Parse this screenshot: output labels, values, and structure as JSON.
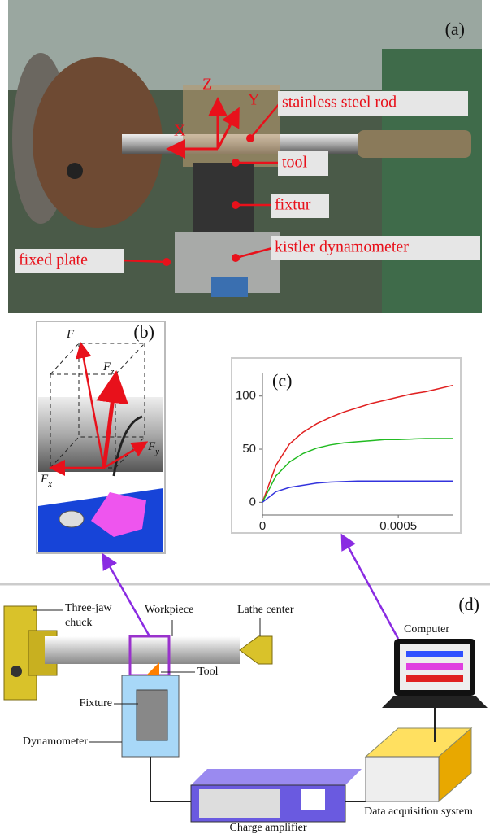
{
  "panel_a": {
    "label": "(a)",
    "axes": [
      "X",
      "Y",
      "Z"
    ],
    "annotations": [
      "stainless steel rod",
      "tool",
      "fixtur",
      "kistler dynamometer",
      "fixed plate"
    ]
  },
  "panel_b": {
    "label": "(b)",
    "forces": [
      {
        "symbol": "F"
      },
      {
        "symbol": "F",
        "subscript": "z"
      },
      {
        "symbol": "F",
        "subscript": "y"
      },
      {
        "symbol": "F",
        "subscript": "x"
      }
    ]
  },
  "panel_c": {
    "type": "line",
    "label": "(c)",
    "x": [
      0,
      5e-05,
      0.0001,
      0.00015,
      0.0002,
      0.00025,
      0.0003,
      0.00035,
      0.0004,
      0.00045,
      0.0005,
      0.00055,
      0.0006,
      0.00065,
      0.0007
    ],
    "series": [
      {
        "color": "#e02020",
        "values": [
          0,
          35,
          55,
          66,
          74,
          80,
          85,
          89,
          93,
          96,
          99,
          102,
          104,
          107,
          110
        ]
      },
      {
        "color": "#22bb22",
        "values": [
          0,
          25,
          38,
          46,
          51,
          54,
          56,
          57,
          58,
          59,
          59,
          59.5,
          60,
          60,
          60
        ]
      },
      {
        "color": "#3333dd",
        "values": [
          0,
          10,
          14,
          16,
          18,
          19,
          19.5,
          20,
          20,
          20,
          20,
          20,
          20,
          20,
          20
        ]
      }
    ],
    "xlim": [
      0,
      0.0007
    ],
    "ylim": [
      -12,
      122
    ],
    "xticks": [
      0,
      0.0005
    ],
    "yticks": [
      0,
      50,
      100
    ]
  },
  "panel_d": {
    "label": "(d)",
    "chuck": [
      "Three-jaw",
      "chuck"
    ],
    "workpiece": "Workpiece",
    "lathe_center": "Lathe center",
    "tool": "Tool",
    "fixture": "Fixture",
    "dynamometer": "Dynamometer",
    "charge_amplifier": "Charge amplifier",
    "daq": "Data acquisition system",
    "computer": "Computer"
  }
}
